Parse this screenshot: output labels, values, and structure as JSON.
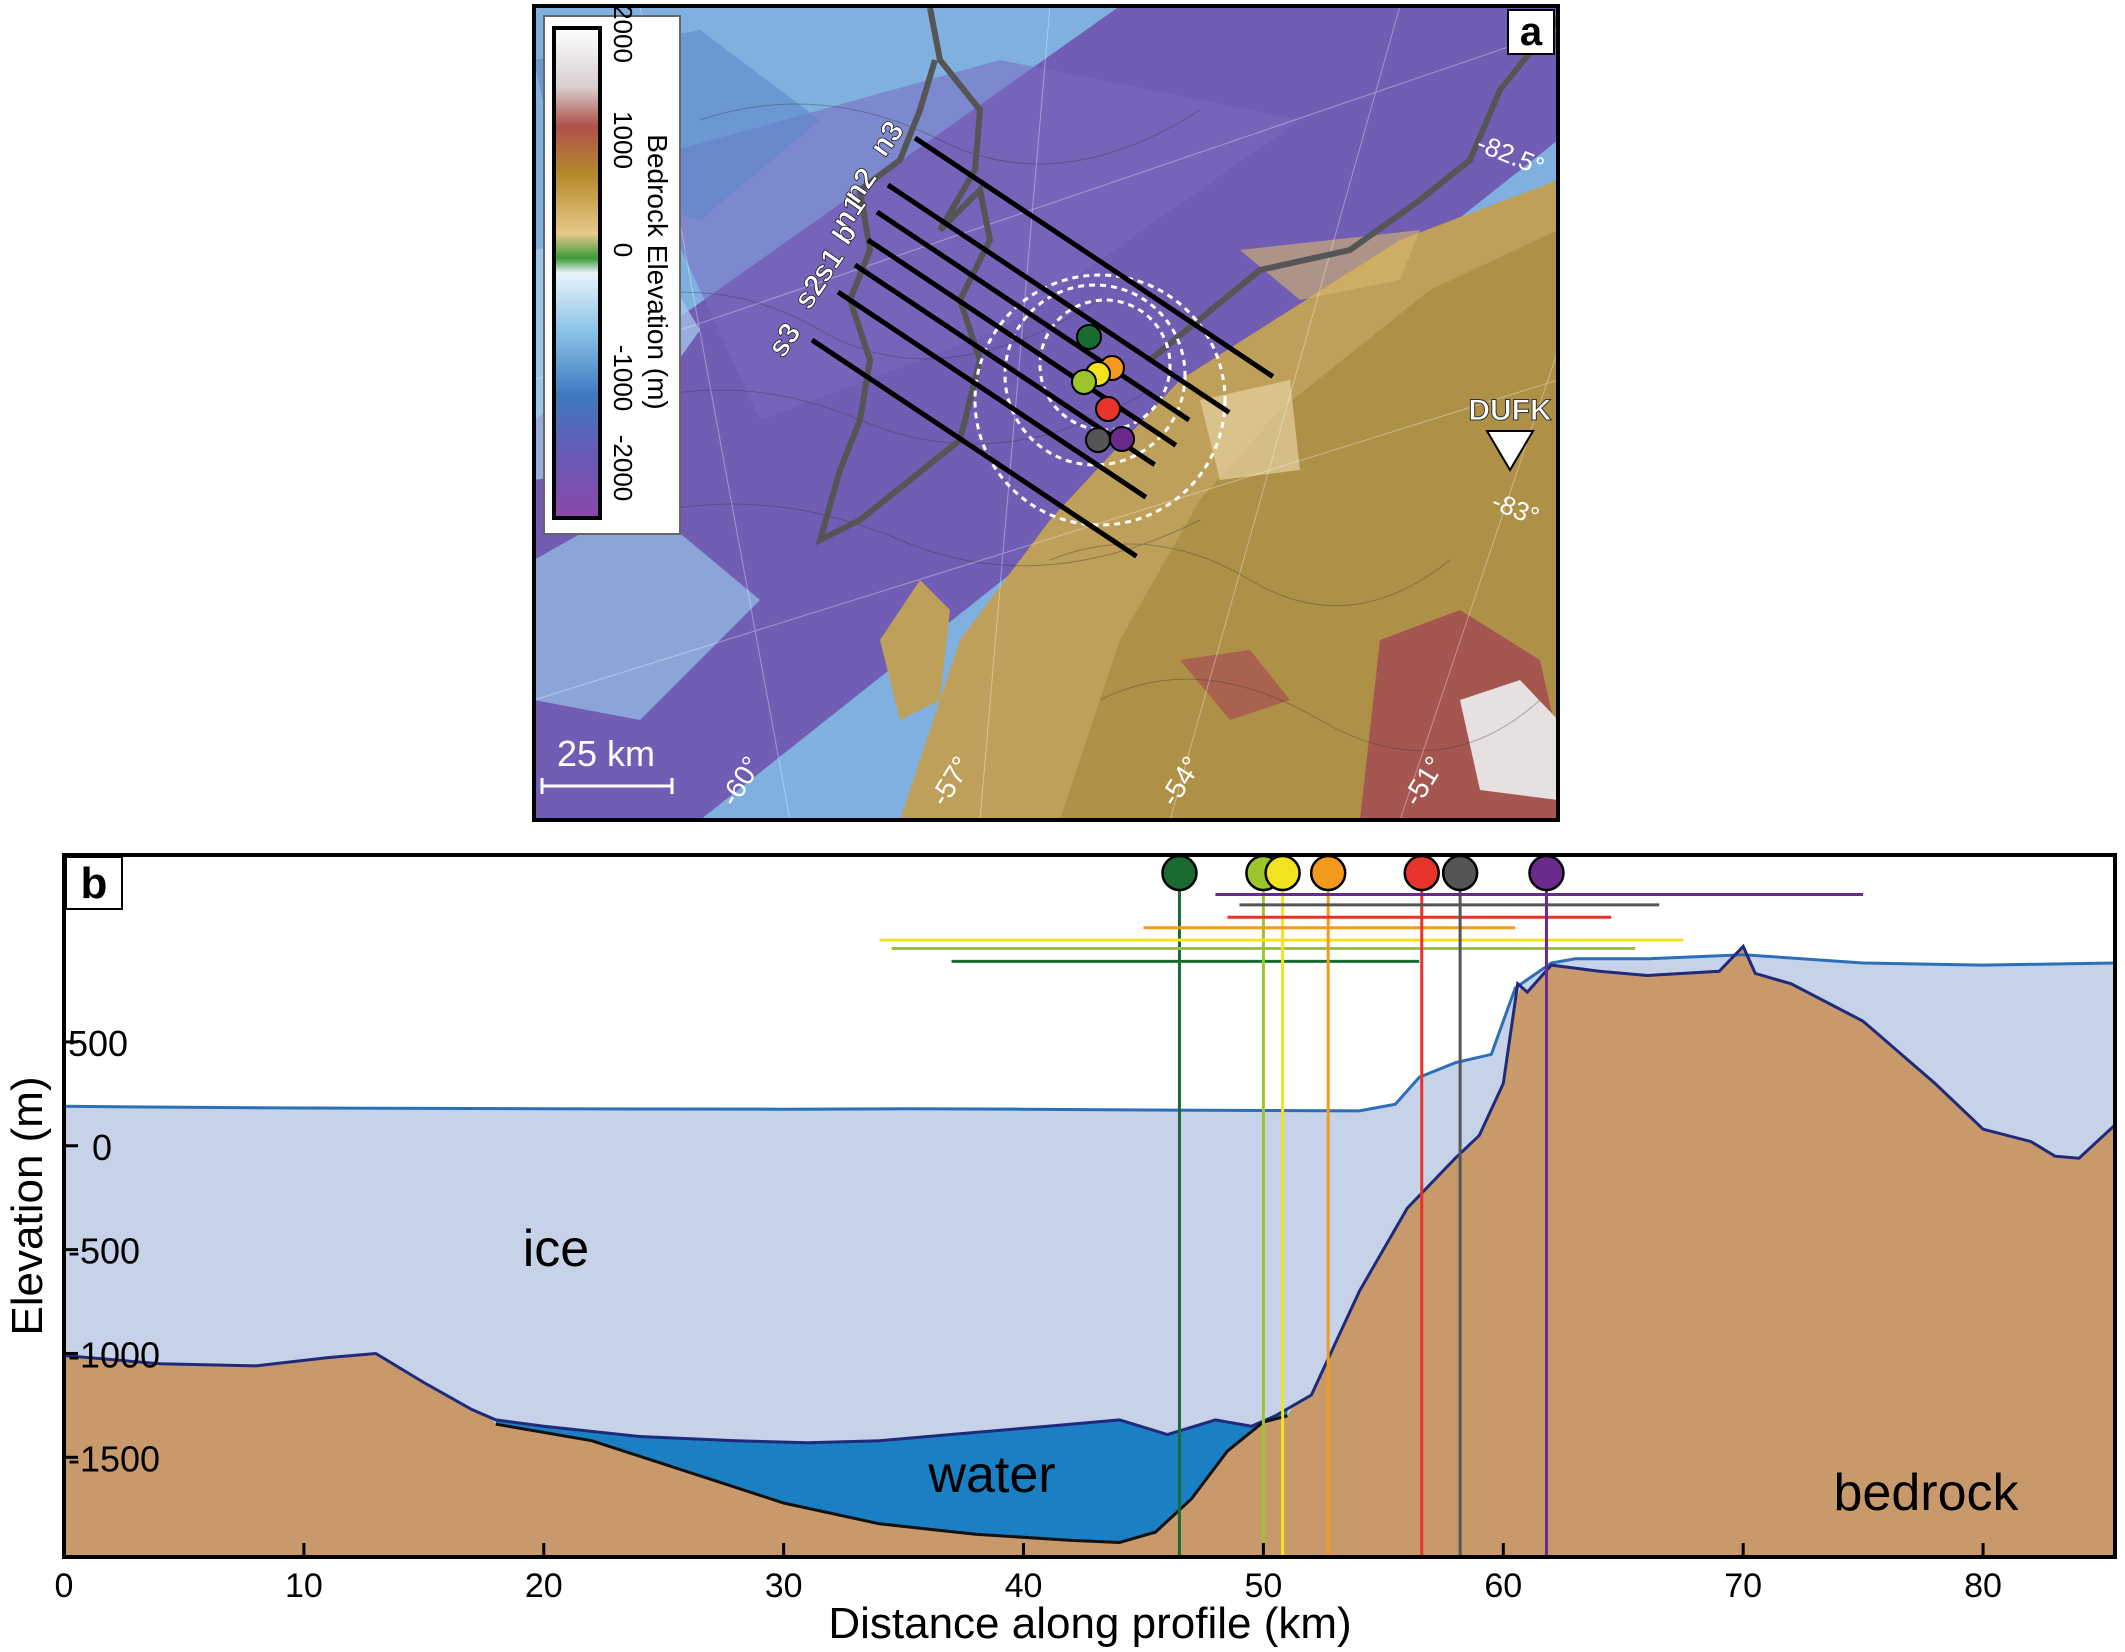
{
  "panel_a": {
    "label": "a",
    "colorbar": {
      "title": "Bedrock Elevation (m)",
      "ticks": [
        "2000",
        "1000",
        "0",
        "-1000",
        "-2000"
      ]
    },
    "profiles": [
      "n3",
      "n2",
      "n1",
      "b",
      "s1",
      "s2",
      "s3"
    ],
    "station": "DUFK",
    "lat_labels": [
      "-82.5°",
      "-83°"
    ],
    "lon_labels": [
      "-60°",
      "-57°",
      "-54°",
      "-51°"
    ],
    "scale_bar": "25 km",
    "markers": [
      {
        "color": "#1a6b32"
      },
      {
        "color": "#f39a1e"
      },
      {
        "color": "#f3e21e"
      },
      {
        "color": "#9cc52b"
      },
      {
        "color": "#e8332a"
      },
      {
        "color": "#555555"
      },
      {
        "color": "#6a2a8c"
      }
    ]
  },
  "chart_data": {
    "type": "area",
    "panel_label": "b",
    "xlabel": "Distance along profile (km)",
    "ylabel": "Elevation (m)",
    "xlim": [
      0,
      85.5
    ],
    "ylim": [
      -1980,
      1400
    ],
    "x_ticks": [
      0,
      10,
      20,
      30,
      40,
      50,
      60,
      70,
      80
    ],
    "y_ticks": [
      500,
      0,
      -500,
      -1000,
      -1500
    ],
    "annotations": [
      "ice",
      "water",
      "bedrock"
    ],
    "colors": {
      "ice": "#c6d2e8",
      "water": "#1b7fc4",
      "bedrock": "#c8996b",
      "surface_line": "#2c6fb8",
      "bed_line": "#1f2a7a"
    },
    "surface": {
      "x": [
        0,
        5,
        10,
        15,
        20,
        25,
        30,
        35,
        40,
        45,
        50,
        54,
        55.5,
        56.5,
        58,
        59.5,
        60.5,
        61,
        62,
        63,
        66,
        70,
        75,
        80,
        85.5
      ],
      "y": [
        190,
        185,
        182,
        180,
        178,
        177,
        176,
        178,
        176,
        172,
        170,
        168,
        200,
        330,
        400,
        440,
        760,
        800,
        880,
        900,
        900,
        920,
        880,
        870,
        880
      ]
    },
    "bed": {
      "x": [
        0,
        4,
        8,
        11,
        13,
        15,
        17,
        18,
        20,
        24,
        28,
        31,
        34,
        38,
        41,
        44,
        46,
        48,
        49.5,
        50.5,
        52,
        54,
        56,
        58,
        59,
        60,
        60.6,
        61,
        62,
        64,
        66,
        69,
        70,
        70.5,
        72,
        75,
        78,
        80,
        82,
        83,
        84,
        85.5
      ],
      "y": [
        -1010,
        -1050,
        -1060,
        -1020,
        -1000,
        -1140,
        -1270,
        -1320,
        -1350,
        -1400,
        -1420,
        -1430,
        -1420,
        -1380,
        -1350,
        -1320,
        -1390,
        -1320,
        -1350,
        -1300,
        -1200,
        -700,
        -300,
        -60,
        50,
        300,
        780,
        740,
        870,
        840,
        820,
        840,
        960,
        830,
        780,
        600,
        300,
        80,
        20,
        -50,
        -60,
        100
      ]
    },
    "water_bottom": {
      "x": [
        18,
        22,
        26,
        30,
        34,
        38,
        42,
        44,
        45.5,
        47,
        48.5,
        50,
        51
      ],
      "y": [
        -1340,
        -1420,
        -1570,
        -1720,
        -1820,
        -1870,
        -1900,
        -1910,
        -1860,
        -1700,
        -1470,
        -1330,
        -1300
      ]
    },
    "markers": [
      {
        "color": "#1a6b32",
        "x": 46.5,
        "range": [
          37,
          56.5
        ],
        "y_range": 888
      },
      {
        "color": "#9cc52b",
        "x": 50.0,
        "range": [
          34.5,
          65.5
        ],
        "y_range": 950
      },
      {
        "color": "#f3e21e",
        "x": 50.8,
        "range": [
          34,
          67.5
        ],
        "y_range": 990
      },
      {
        "color": "#f39a1e",
        "x": 52.7,
        "range": [
          45,
          60.5
        ],
        "y_range": 1050
      },
      {
        "color": "#e8332a",
        "x": 56.6,
        "range": [
          48.5,
          64.5
        ],
        "y_range": 1100
      },
      {
        "color": "#555555",
        "x": 58.2,
        "range": [
          49,
          66.5
        ],
        "y_range": 1160
      },
      {
        "color": "#6a2a8c",
        "x": 61.8,
        "range": [
          48,
          75
        ],
        "y_range": 1210
      }
    ]
  }
}
